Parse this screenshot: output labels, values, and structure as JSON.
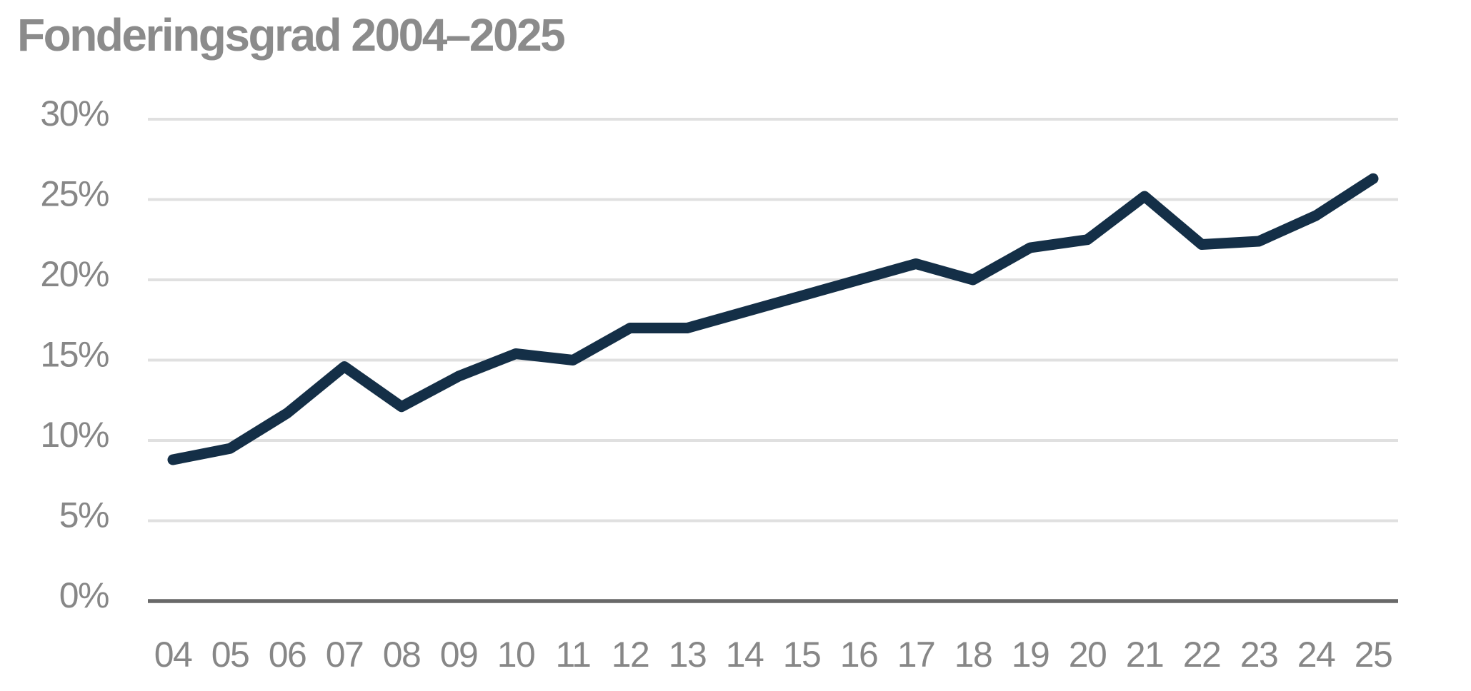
{
  "chart_data": {
    "type": "line",
    "title": "Fonderingsgrad 2004–2025",
    "categories": [
      "04",
      "05",
      "06",
      "07",
      "08",
      "09",
      "10",
      "11",
      "12",
      "13",
      "14",
      "15",
      "16",
      "17",
      "18",
      "19",
      "20",
      "21",
      "22",
      "23",
      "24",
      "25"
    ],
    "series": [
      {
        "name": "Fonderingsgrad",
        "values": [
          8.8,
          9.5,
          11.7,
          14.6,
          12.1,
          14.0,
          15.4,
          15.0,
          17.0,
          17.0,
          18.0,
          19.0,
          20.0,
          21.0,
          20.0,
          22.0,
          22.5,
          25.2,
          22.2,
          22.4,
          24.0,
          26.3
        ]
      }
    ],
    "xlabel": "",
    "ylabel": "",
    "ylim": [
      0,
      30
    ],
    "yticks": [
      0,
      5,
      10,
      15,
      20,
      25,
      30
    ],
    "ytick_suffix": "%",
    "grid": "horizontal",
    "legend_position": "none",
    "colors": {
      "line": "#142f47",
      "grid": "#e0e0e0",
      "axis": "#696969",
      "tick_labels": "#878787",
      "title": "#8b8b8b",
      "background": "#ffffff"
    }
  }
}
